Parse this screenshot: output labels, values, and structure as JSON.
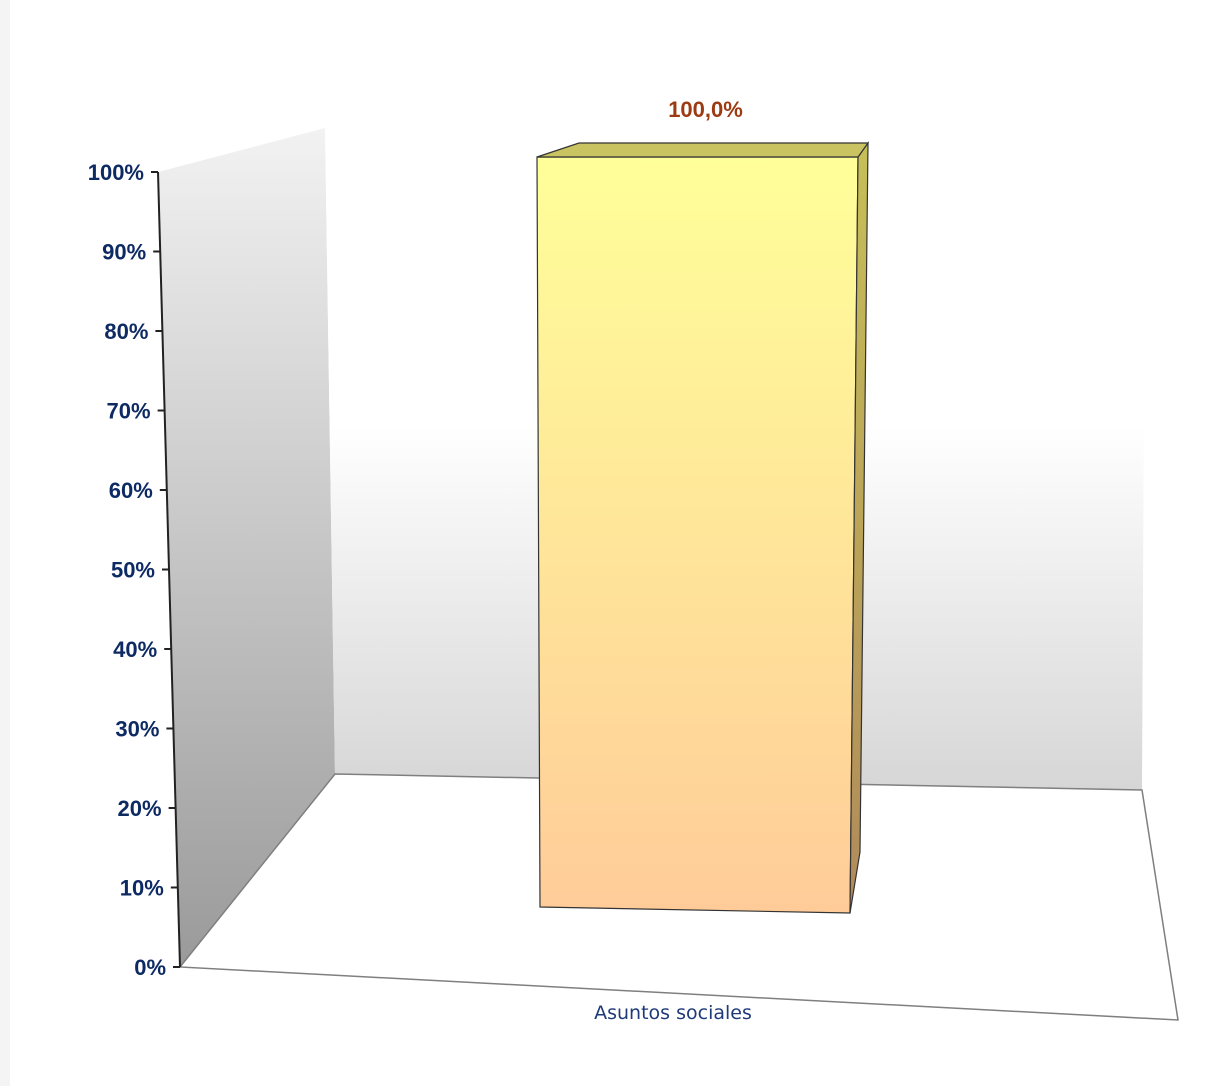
{
  "chart_data": {
    "type": "bar",
    "categories": [
      "Asuntos sociales"
    ],
    "values": [
      100.0
    ],
    "data_labels": [
      "100,0%"
    ],
    "ylim": [
      0,
      100
    ],
    "yticks": [
      "0%",
      "10%",
      "20%",
      "30%",
      "40%",
      "50%",
      "60%",
      "70%",
      "80%",
      "90%",
      "100%"
    ],
    "title": "",
    "xlabel": "",
    "ylabel": "",
    "grid": false,
    "legend": "none",
    "colors": {
      "bar_top": "#ffff99",
      "bar_bottom": "#ffcc99",
      "axis_text": "#0d2a63",
      "data_label": "#9c3a12"
    }
  }
}
